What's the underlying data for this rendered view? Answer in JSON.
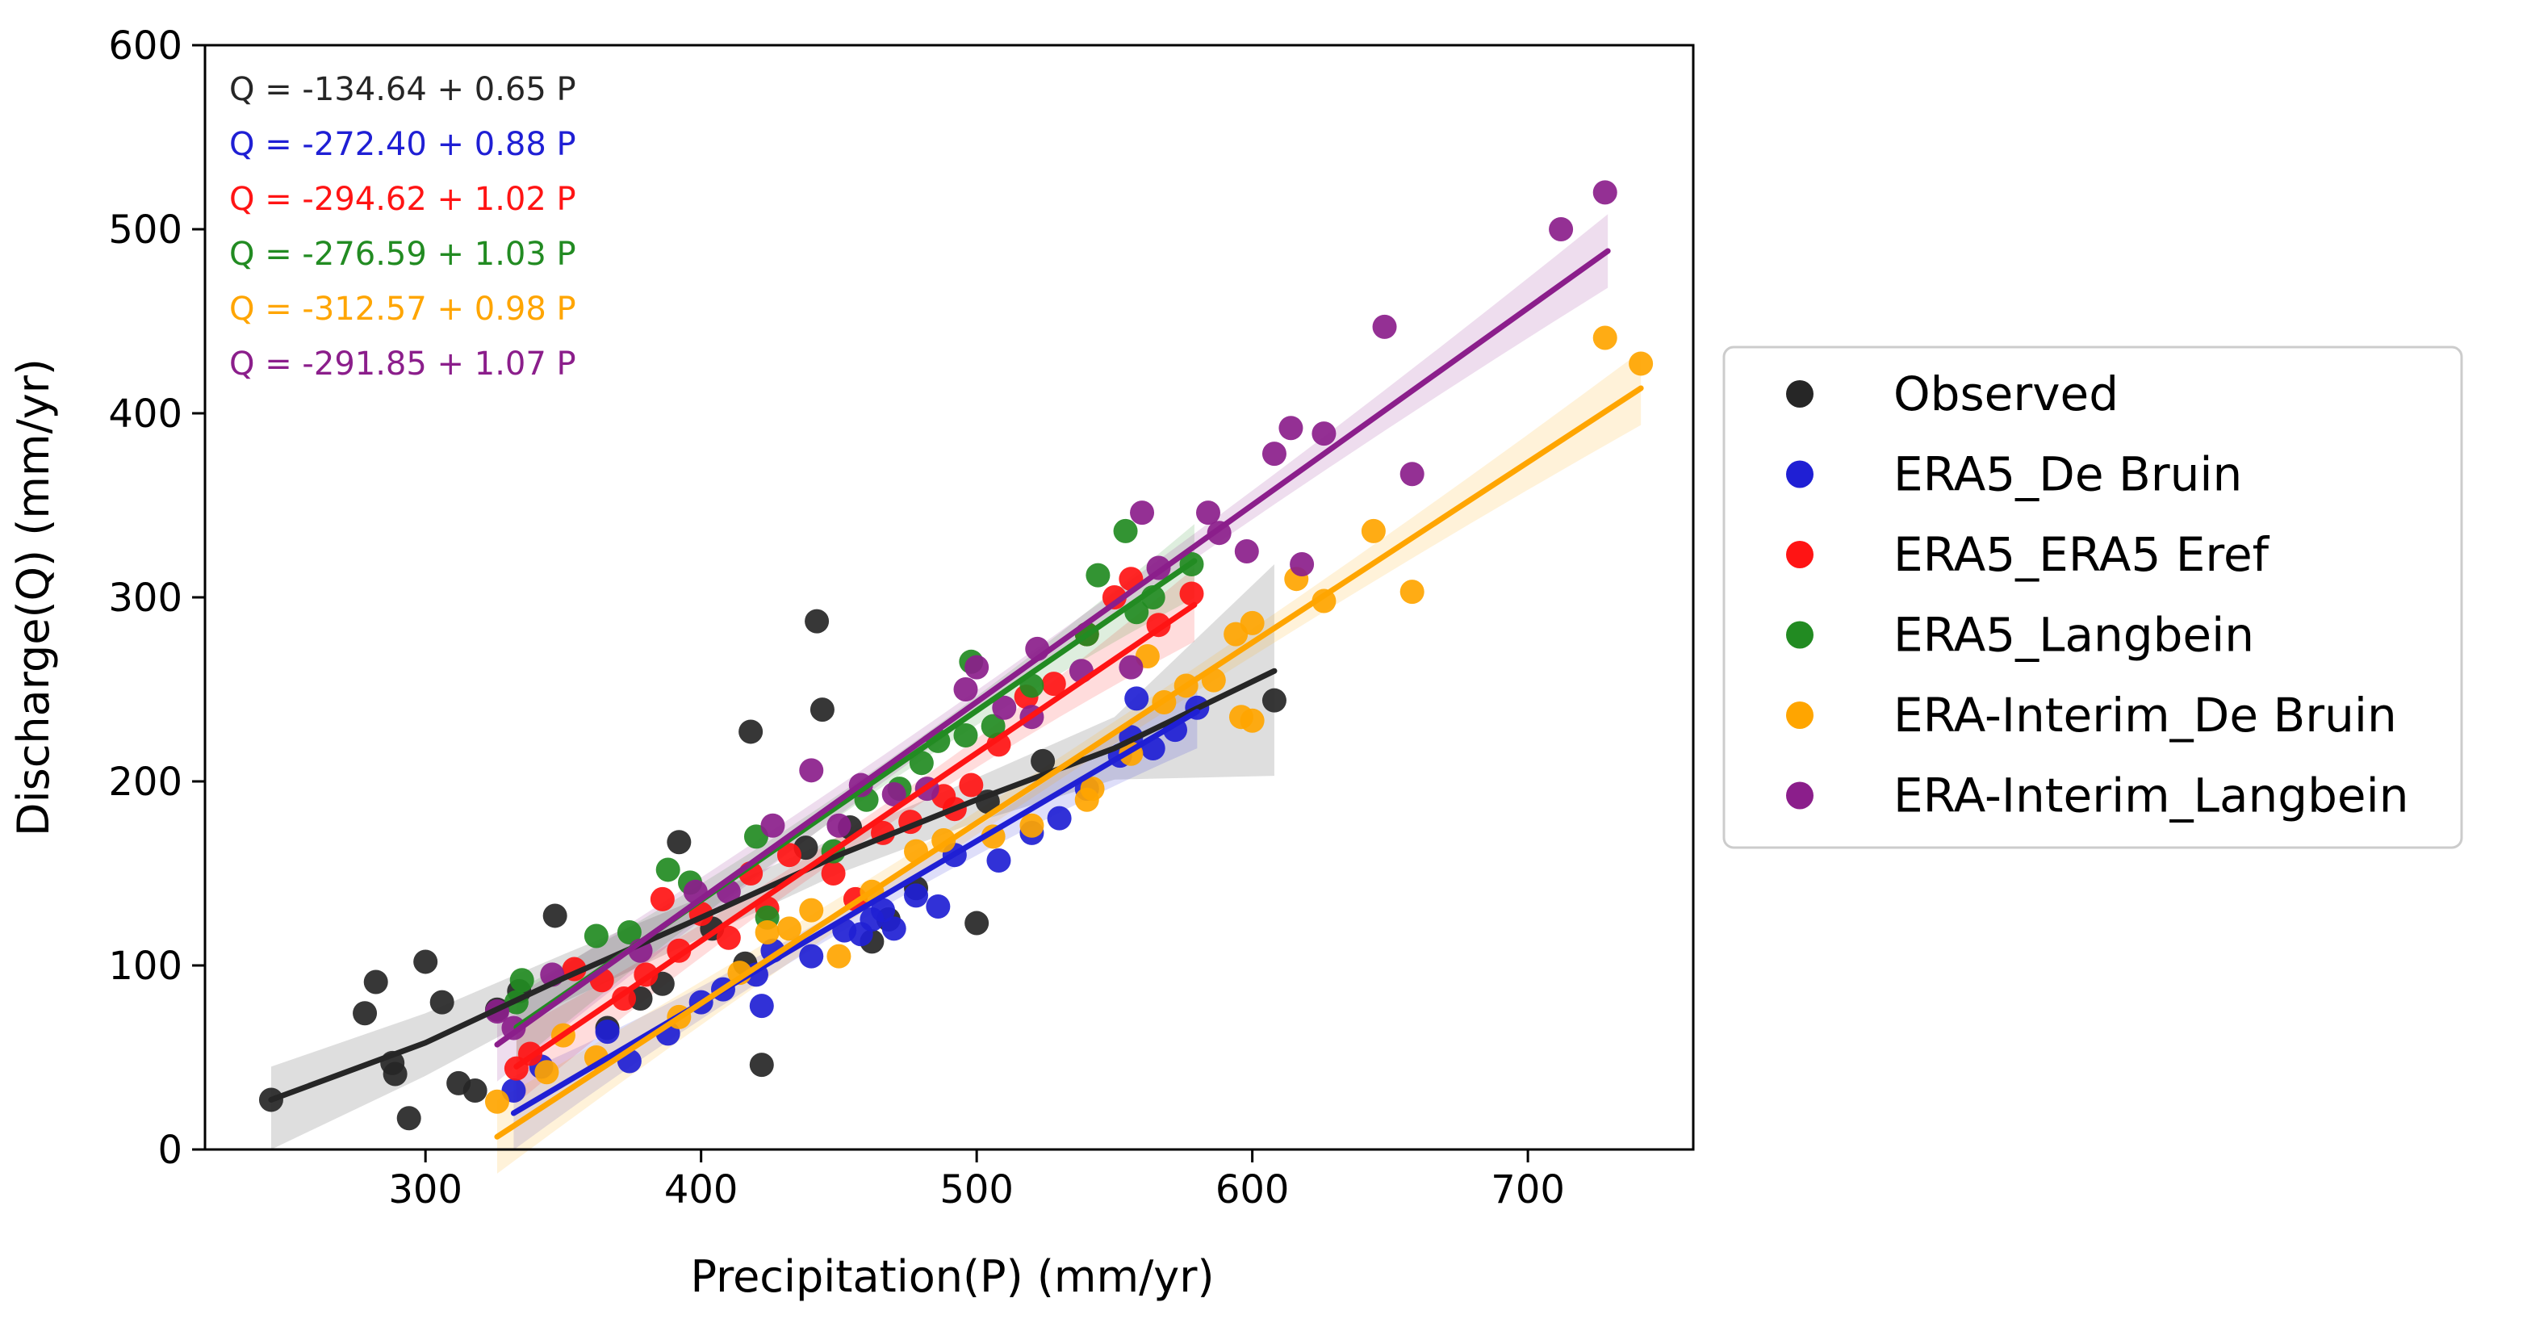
{
  "chart_data": {
    "type": "scatter",
    "title": "",
    "xlabel": "Precipitation(P) (mm/yr)",
    "ylabel": "Discharge(Q) (mm/yr)",
    "xlim": [
      220,
      760
    ],
    "ylim": [
      0,
      600
    ],
    "xticks": [
      300,
      400,
      500,
      600,
      700
    ],
    "yticks": [
      0,
      100,
      200,
      300,
      400,
      500,
      600
    ],
    "legend_position": "right, outside plot",
    "series": [
      {
        "name": "Observed",
        "color": "#262626",
        "equation": "Q = -134.64 + 0.65 P",
        "fit": "lowess",
        "fit_line": [
          [
            244,
            27
          ],
          [
            300,
            58
          ],
          [
            350,
            93
          ],
          [
            400,
            126
          ],
          [
            450,
            160
          ],
          [
            500,
            190
          ],
          [
            550,
            218
          ],
          [
            608,
            260
          ]
        ],
        "band": {
          "upper": [
            [
              244,
              45
            ],
            [
              300,
              74
            ],
            [
              350,
              106
            ],
            [
              400,
              137
            ],
            [
              450,
              170
            ],
            [
              500,
              202
            ],
            [
              550,
              235
            ],
            [
              608,
              318
            ]
          ],
          "lower": [
            [
              244,
              0
            ],
            [
              300,
              40
            ],
            [
              350,
              80
            ],
            [
              400,
              115
            ],
            [
              450,
              150
            ],
            [
              500,
              178
            ],
            [
              550,
              201
            ],
            [
              608,
              203
            ]
          ]
        },
        "points": [
          [
            244,
            27
          ],
          [
            278,
            74
          ],
          [
            282,
            91
          ],
          [
            288,
            47
          ],
          [
            289,
            41
          ],
          [
            294,
            17
          ],
          [
            300,
            102
          ],
          [
            306,
            80
          ],
          [
            312,
            36
          ],
          [
            318,
            32
          ],
          [
            326,
            76
          ],
          [
            334,
            86
          ],
          [
            347,
            127
          ],
          [
            366,
            66
          ],
          [
            378,
            82
          ],
          [
            386,
            90
          ],
          [
            392,
            167
          ],
          [
            404,
            120
          ],
          [
            416,
            101
          ],
          [
            418,
            227
          ],
          [
            422,
            46
          ],
          [
            438,
            164
          ],
          [
            442,
            287
          ],
          [
            444,
            239
          ],
          [
            454,
            175
          ],
          [
            462,
            113
          ],
          [
            468,
            125
          ],
          [
            478,
            142
          ],
          [
            500,
            123
          ],
          [
            504,
            189
          ],
          [
            524,
            211
          ],
          [
            608,
            244
          ]
        ]
      },
      {
        "name": "ERA5_De Bruin",
        "color": "#1f1fd4",
        "equation": "Q = -272.40 + 0.88 P",
        "fit": "linear",
        "intercept": -272.4,
        "slope": 0.88,
        "x_range": [
          332,
          580
        ],
        "points": [
          [
            332,
            32
          ],
          [
            342,
            45
          ],
          [
            366,
            64
          ],
          [
            374,
            48
          ],
          [
            388,
            63
          ],
          [
            400,
            80
          ],
          [
            408,
            87
          ],
          [
            420,
            95
          ],
          [
            422,
            78
          ],
          [
            426,
            108
          ],
          [
            440,
            105
          ],
          [
            452,
            119
          ],
          [
            458,
            117
          ],
          [
            462,
            125
          ],
          [
            466,
            130
          ],
          [
            470,
            120
          ],
          [
            478,
            138
          ],
          [
            486,
            132
          ],
          [
            492,
            160
          ],
          [
            508,
            157
          ],
          [
            520,
            172
          ],
          [
            530,
            180
          ],
          [
            540,
            196
          ],
          [
            552,
            214
          ],
          [
            556,
            224
          ],
          [
            558,
            245
          ],
          [
            564,
            218
          ],
          [
            572,
            228
          ],
          [
            580,
            240
          ]
        ]
      },
      {
        "name": "ERA5_ERA5 Eref",
        "color": "#ff1414",
        "equation": "Q = -294.62 + 1.02 P",
        "fit": "linear",
        "intercept": -294.62,
        "slope": 1.02,
        "x_range": [
          333,
          579
        ],
        "points": [
          [
            333,
            44
          ],
          [
            338,
            52
          ],
          [
            354,
            98
          ],
          [
            364,
            92
          ],
          [
            372,
            82
          ],
          [
            380,
            95
          ],
          [
            386,
            136
          ],
          [
            392,
            108
          ],
          [
            400,
            128
          ],
          [
            410,
            115
          ],
          [
            418,
            150
          ],
          [
            424,
            131
          ],
          [
            432,
            160
          ],
          [
            448,
            150
          ],
          [
            456,
            136
          ],
          [
            466,
            172
          ],
          [
            476,
            178
          ],
          [
            488,
            192
          ],
          [
            492,
            185
          ],
          [
            498,
            198
          ],
          [
            508,
            220
          ],
          [
            518,
            246
          ],
          [
            528,
            253
          ],
          [
            540,
            280
          ],
          [
            550,
            300
          ],
          [
            556,
            310
          ],
          [
            566,
            285
          ],
          [
            578,
            302
          ]
        ]
      },
      {
        "name": "ERA5_Langbein",
        "color": "#228b22",
        "equation": "Q = -276.59 + 1.03 P",
        "fit": "linear",
        "intercept": -276.59,
        "slope": 1.03,
        "x_range": [
          333,
          579
        ],
        "points": [
          [
            333,
            80
          ],
          [
            335,
            92
          ],
          [
            362,
            116
          ],
          [
            374,
            118
          ],
          [
            388,
            152
          ],
          [
            396,
            145
          ],
          [
            420,
            170
          ],
          [
            424,
            126
          ],
          [
            448,
            162
          ],
          [
            460,
            190
          ],
          [
            472,
            196
          ],
          [
            480,
            210
          ],
          [
            486,
            222
          ],
          [
            496,
            225
          ],
          [
            498,
            265
          ],
          [
            506,
            230
          ],
          [
            520,
            252
          ],
          [
            540,
            280
          ],
          [
            544,
            312
          ],
          [
            554,
            336
          ],
          [
            558,
            292
          ],
          [
            564,
            300
          ],
          [
            578,
            318
          ]
        ]
      },
      {
        "name": "ERA-Interim_De Bruin",
        "color": "#ffa500",
        "equation": "Q = -312.57 + 0.98 P",
        "fit": "linear",
        "intercept": -312.57,
        "slope": 0.98,
        "x_range": [
          326,
          741
        ],
        "points": [
          [
            326,
            26
          ],
          [
            344,
            42
          ],
          [
            350,
            62
          ],
          [
            362,
            50
          ],
          [
            392,
            72
          ],
          [
            414,
            96
          ],
          [
            424,
            118
          ],
          [
            432,
            120
          ],
          [
            440,
            130
          ],
          [
            450,
            105
          ],
          [
            462,
            140
          ],
          [
            478,
            162
          ],
          [
            488,
            168
          ],
          [
            506,
            170
          ],
          [
            520,
            176
          ],
          [
            540,
            190
          ],
          [
            542,
            196
          ],
          [
            556,
            215
          ],
          [
            562,
            268
          ],
          [
            568,
            243
          ],
          [
            576,
            252
          ],
          [
            586,
            255
          ],
          [
            594,
            280
          ],
          [
            596,
            235
          ],
          [
            600,
            286
          ],
          [
            600,
            233
          ],
          [
            616,
            310
          ],
          [
            626,
            298
          ],
          [
            644,
            336
          ],
          [
            658,
            303
          ],
          [
            728,
            441
          ],
          [
            741,
            427
          ]
        ]
      },
      {
        "name": "ERA-Interim_Langbein",
        "color": "#8b1e8b",
        "equation": "Q = -291.85 + 1.07 P",
        "fit": "linear",
        "intercept": -291.85,
        "slope": 1.07,
        "x_range": [
          326,
          729
        ],
        "points": [
          [
            326,
            75
          ],
          [
            332,
            66
          ],
          [
            346,
            95
          ],
          [
            378,
            108
          ],
          [
            398,
            140
          ],
          [
            410,
            140
          ],
          [
            426,
            176
          ],
          [
            440,
            206
          ],
          [
            450,
            176
          ],
          [
            458,
            198
          ],
          [
            470,
            193
          ],
          [
            482,
            196
          ],
          [
            496,
            250
          ],
          [
            500,
            262
          ],
          [
            510,
            240
          ],
          [
            520,
            235
          ],
          [
            522,
            272
          ],
          [
            538,
            260
          ],
          [
            556,
            262
          ],
          [
            560,
            346
          ],
          [
            566,
            316
          ],
          [
            584,
            346
          ],
          [
            588,
            335
          ],
          [
            598,
            325
          ],
          [
            608,
            378
          ],
          [
            614,
            392
          ],
          [
            618,
            318
          ],
          [
            626,
            389
          ],
          [
            648,
            447
          ],
          [
            658,
            367
          ],
          [
            712,
            500
          ],
          [
            728,
            520
          ]
        ]
      }
    ]
  }
}
